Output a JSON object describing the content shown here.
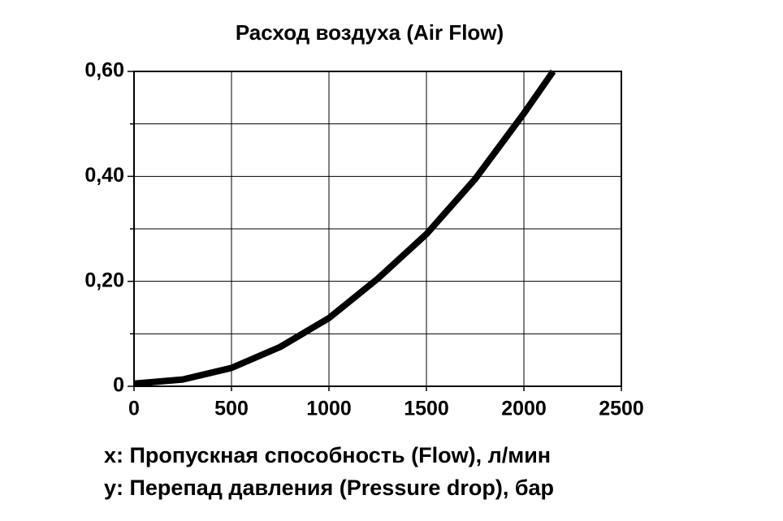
{
  "chart_data": {
    "type": "line",
    "title": "Расход воздуха (Air Flow)",
    "x_label": "x: Пропускная способность (Flow), л/мин",
    "y_label": "y: Перепад давления (Pressure drop), бар",
    "xlim": [
      0,
      2500
    ],
    "xticks": [
      0,
      500,
      1000,
      1500,
      2000,
      2500
    ],
    "ylim": [
      0,
      0.6
    ],
    "yticks": [
      0,
      {
        "value": 0.2,
        "label": "0,20"
      },
      {
        "value": 0.4,
        "label": "0,40"
      },
      {
        "value": 0.6,
        "label": "0,60"
      }
    ],
    "minor_yticks": [
      0.1,
      0.3,
      0.5
    ],
    "grid": true,
    "series": [
      {
        "color": "#000000",
        "x": [
          0,
          250,
          500,
          750,
          1000,
          1250,
          1500,
          1750,
          2000,
          2150
        ],
        "values": [
          0.005,
          0.013,
          0.035,
          0.075,
          0.13,
          0.205,
          0.29,
          0.395,
          0.52,
          0.6
        ]
      }
    ]
  }
}
